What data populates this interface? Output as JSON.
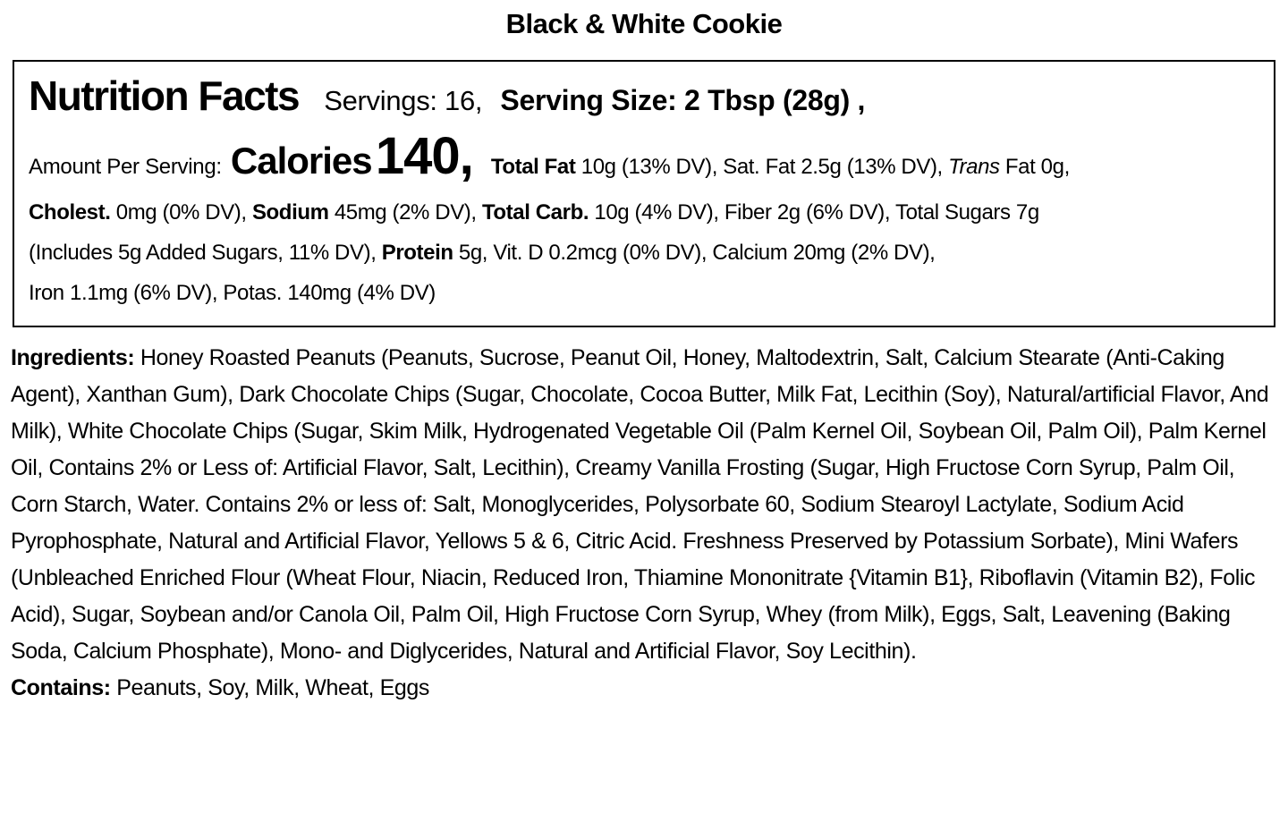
{
  "page": {
    "title": "Black & White Cookie"
  },
  "colors": {
    "text": "#000000",
    "background": "#ffffff",
    "panel_border": "#000000"
  },
  "nutrition_panel": {
    "heading": "Nutrition Facts",
    "servings": "Servings: 16,",
    "serving_size": "Serving Size: 2 Tbsp (28g) ,",
    "amount_per_serving_label": "Amount Per Serving:",
    "calories_label": "Calories",
    "calories_value": "140,",
    "line1": {
      "total_fat_label": "Total Fat",
      "total_fat_rest": " 10g (13% DV), Sat. Fat 2.5g (13% DV), ",
      "trans_label": "Trans",
      "trans_rest": " Fat 0g,"
    },
    "line2": {
      "cholest_label": "Cholest.",
      "cholest_rest": " 0mg (0% DV), ",
      "sodium_label": "Sodium",
      "sodium_rest": " 45mg (2% DV), ",
      "total_carb_label": "Total Carb.",
      "total_carb_rest": " 10g (4% DV), Fiber 2g (6% DV), Total Sugars 7g"
    },
    "line3": {
      "includes_text": "(Includes 5g Added Sugars, 11% DV), ",
      "protein_label": "Protein",
      "protein_rest": " 5g, Vit. D 0.2mcg (0% DV), Calcium 20mg (2% DV),"
    },
    "line4": "Iron 1.1mg (6% DV), Potas. 140mg (4% DV)"
  },
  "ingredients": {
    "label": "Ingredients:",
    "text": " Honey Roasted Peanuts (Peanuts, Sucrose, Peanut Oil, Honey, Maltodextrin, Salt, Calcium Stearate (Anti-Caking Agent), Xanthan Gum), Dark Chocolate Chips (Sugar, Chocolate, Cocoa Butter, Milk Fat, Lecithin (Soy), Natural/artificial Flavor, And Milk), White Chocolate Chips (Sugar, Skim Milk, Hydrogenated Vegetable Oil (Palm Kernel Oil, Soybean Oil, Palm Oil), Palm Kernel Oil, Contains 2% or Less of: Artificial Flavor, Salt, Lecithin), Creamy Vanilla Frosting (Sugar, High Fructose Corn Syrup, Palm Oil, Corn Starch, Water. Contains 2% or less of: Salt, Monoglycerides, Polysorbate 60, Sodium Stearoyl Lactylate, Sodium Acid Pyrophosphate, Natural and Artificial Flavor, Yellows 5 & 6, Citric Acid. Freshness Preserved by Potassium Sorbate), Mini Wafers (Unbleached Enriched Flour (Wheat Flour, Niacin, Reduced Iron, Thiamine Mononitrate {Vitamin B1}, Riboflavin (Vitamin B2), Folic Acid), Sugar, Soybean and/or Canola Oil, Palm Oil, High Fructose Corn Syrup, Whey (from Milk), Eggs, Salt, Leavening (Baking Soda, Calcium Phosphate), Mono- and Diglycerides, Natural and Artificial Flavor, Soy Lecithin)."
  },
  "allergens": {
    "label": "Contains:",
    "text": " Peanuts, Soy, Milk, Wheat, Eggs"
  }
}
